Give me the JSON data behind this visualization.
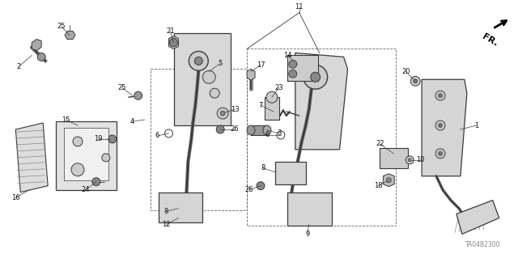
{
  "bg_color": "#ffffff",
  "fig_width": 6.4,
  "fig_height": 3.19,
  "dpi": 100,
  "diagram_image_code": "TA04B2300",
  "line_color": "#3a3a3a",
  "text_color": "#111111",
  "font_size_label": 6.0
}
